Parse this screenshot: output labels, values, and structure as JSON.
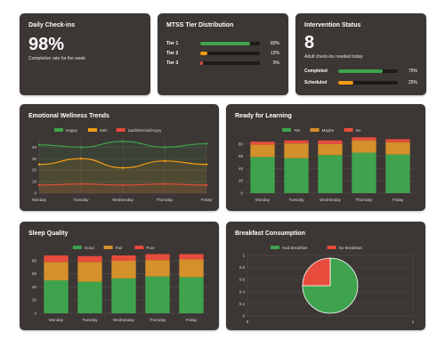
{
  "checkins": {
    "title": "Daily Check-ins",
    "value": "98%",
    "subtitle": "Completion rate for the week"
  },
  "mtss": {
    "title": "MTSS Tier Distribution",
    "tiers": [
      {
        "label": "Tier 1",
        "percent": 83,
        "percent_text": "83%",
        "color": "#3fa34d"
      },
      {
        "label": "Tier 2",
        "percent": 12,
        "percent_text": "12%",
        "color": "#f39c12"
      },
      {
        "label": "Tier 3",
        "percent": 5,
        "percent_text": "5%",
        "color": "#e74c3c"
      }
    ]
  },
  "intervention": {
    "title": "Intervention Status",
    "value": "8",
    "subtitle": "Adult check-ins needed today",
    "rows": [
      {
        "label": "Completed",
        "percent": 75,
        "percent_text": "75%",
        "color": "#3fa34d"
      },
      {
        "label": "Scheduled",
        "percent": 25,
        "percent_text": "25%",
        "color": "#f39c12"
      }
    ]
  },
  "colors": {
    "green": "#3fa34d",
    "orange": "#f39c12",
    "red": "#e74c3c",
    "card": "#3c3634",
    "grid": "#5a5350",
    "axis_text": "#d9d9d9"
  },
  "chart_data": [
    {
      "id": "emotional",
      "title": "Emotional Wellness Trends",
      "type": "line",
      "categories": [
        "Monday",
        "Tuesday",
        "Wednesday",
        "Thursday",
        "Friday"
      ],
      "series": [
        {
          "name": "Happy",
          "color": "#3fa34d",
          "values": [
            42,
            40,
            45,
            40,
            43
          ]
        },
        {
          "name": "Meh",
          "color": "#f39c12",
          "values": [
            25,
            30,
            22,
            28,
            25
          ]
        },
        {
          "name": "Sad/Worried/Angry",
          "color": "#e74c3c",
          "values": [
            7,
            8,
            7,
            8,
            7
          ]
        }
      ],
      "yticks": [
        0,
        10,
        20,
        30,
        40
      ],
      "ylim": [
        0,
        48
      ],
      "legend": "top",
      "grid": true
    },
    {
      "id": "ready",
      "title": "Ready for Learning",
      "type": "bar",
      "stacked": true,
      "categories": [
        "Monday",
        "Tuesday",
        "Wednesday",
        "Thursday",
        "Friday"
      ],
      "series": [
        {
          "name": "Yes",
          "color": "#3fa34d",
          "values": [
            59,
            57,
            62,
            66,
            63
          ]
        },
        {
          "name": "Maybe",
          "color": "#d4902a",
          "values": [
            20,
            24,
            18,
            20,
            20
          ]
        },
        {
          "name": "No",
          "color": "#e74c3c",
          "values": [
            5,
            5,
            6,
            5,
            5
          ]
        }
      ],
      "yticks": [
        0,
        20,
        40,
        60,
        80
      ],
      "ylim": [
        0,
        90
      ],
      "legend": "top",
      "grid": true
    },
    {
      "id": "sleep",
      "title": "Sleep Quality",
      "type": "bar",
      "stacked": true,
      "categories": [
        "Monday",
        "Tuesday",
        "Wednesday",
        "Thursday",
        "Friday"
      ],
      "series": [
        {
          "name": "Good",
          "color": "#3fa34d",
          "values": [
            50,
            48,
            53,
            56,
            55
          ]
        },
        {
          "name": "Fair",
          "color": "#d4902a",
          "values": [
            28,
            30,
            27,
            25,
            27
          ]
        },
        {
          "name": "Poor",
          "color": "#e74c3c",
          "values": [
            10,
            9,
            8,
            9,
            8
          ]
        }
      ],
      "yticks": [
        0,
        20,
        40,
        60,
        80
      ],
      "ylim": [
        0,
        88
      ],
      "legend": "top",
      "grid": true
    },
    {
      "id": "breakfast",
      "title": "Breakfast Consumption",
      "type": "pie",
      "series": [
        {
          "name": "Had Breakfast",
          "color": "#3fa34d",
          "value": 75
        },
        {
          "name": "No Breakfast",
          "color": "#e74c3c",
          "value": 25
        }
      ],
      "yticks": [
        0,
        0.2,
        0.4,
        0.6,
        0.8,
        1
      ],
      "xticks": [
        0,
        1
      ],
      "legend": "top",
      "grid": true
    }
  ]
}
